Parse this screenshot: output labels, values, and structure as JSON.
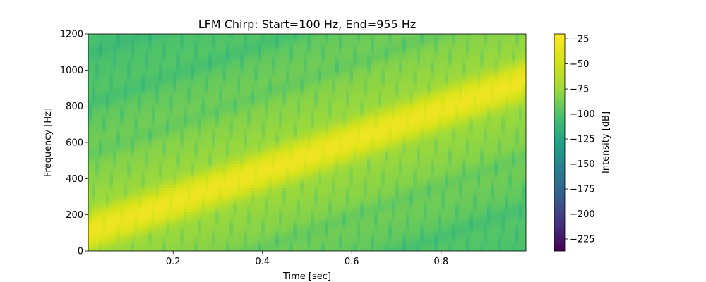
{
  "chart_data": {
    "type": "heatmap",
    "title": "LFM Chirp: Start=100 Hz, End=955 Hz",
    "xlabel": "Time [sec]",
    "ylabel": "Frequency [Hz]",
    "xlim": [
      0.01,
      0.99
    ],
    "ylim": [
      0,
      1200
    ],
    "x_ticks": [
      0.2,
      0.4,
      0.6,
      0.8
    ],
    "x_tick_labels": [
      "0.2",
      "0.4",
      "0.6",
      "0.8"
    ],
    "y_ticks": [
      0,
      200,
      400,
      600,
      800,
      1000,
      1200
    ],
    "y_tick_labels": [
      "0",
      "200",
      "400",
      "600",
      "800",
      "1000",
      "1200"
    ],
    "chirp": {
      "start_hz": 100,
      "end_hz": 955,
      "t_start": 0.0,
      "t_end": 1.0
    },
    "colorbar": {
      "label": "Intensity [dB]",
      "colormap": "viridis",
      "range": [
        -237,
        -20
      ],
      "ticks": [
        -25,
        -50,
        -75,
        -100,
        -125,
        -150,
        -175,
        -200,
        -225
      ],
      "tick_labels": [
        "−25",
        "−50",
        "−75",
        "−100",
        "−125",
        "−150",
        "−175",
        "−200",
        "−225"
      ]
    },
    "grid": false
  }
}
